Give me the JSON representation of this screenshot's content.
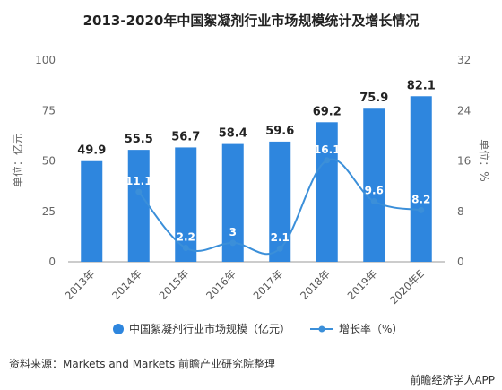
{
  "chart_data": {
    "type": "bar",
    "title": "2013-2020年中国絮凝剂行业市场规模统计及增长情况",
    "categories": [
      "2013年",
      "2014年",
      "2015年",
      "2016年",
      "2017年",
      "2018年",
      "2019年",
      "2020年E"
    ],
    "series": [
      {
        "name": "中国絮凝剂行业市场规模（亿元）",
        "type": "bar",
        "axis": "left",
        "values": [
          49.9,
          55.5,
          56.7,
          58.4,
          59.6,
          69.2,
          75.9,
          82.1
        ],
        "labels": [
          "49.9",
          "55.5",
          "56.7",
          "58.4",
          "59.6",
          "69.2",
          "75.9",
          "82.1"
        ],
        "color": "#2e86de"
      },
      {
        "name": "增长率（%）",
        "type": "line",
        "axis": "right",
        "values": [
          null,
          11.1,
          2.2,
          3,
          2.1,
          16.1,
          9.6,
          8.2
        ],
        "labels": [
          "",
          "11.1",
          "2.2",
          "3",
          "2.1",
          "16.1",
          "9.6",
          "8.2"
        ],
        "color": "#3b8fd9"
      }
    ],
    "ylabel": "单位：亿元",
    "y2label": "单位：%",
    "ylim": [
      0,
      100
    ],
    "y2lim": [
      0,
      32
    ],
    "yticks": [
      "0",
      "25",
      "50",
      "75",
      "100"
    ],
    "y2ticks": [
      "0",
      "8",
      "16",
      "24",
      "32"
    ],
    "grid": false,
    "legend_position": "bottom"
  },
  "source": "资料来源：Markets and Markets 前瞻产业研究院整理",
  "brand": "前瞻经济学人APP",
  "colors": {
    "bar": "#2e86de",
    "line": "#3b8fd9",
    "axis": "#999999"
  }
}
